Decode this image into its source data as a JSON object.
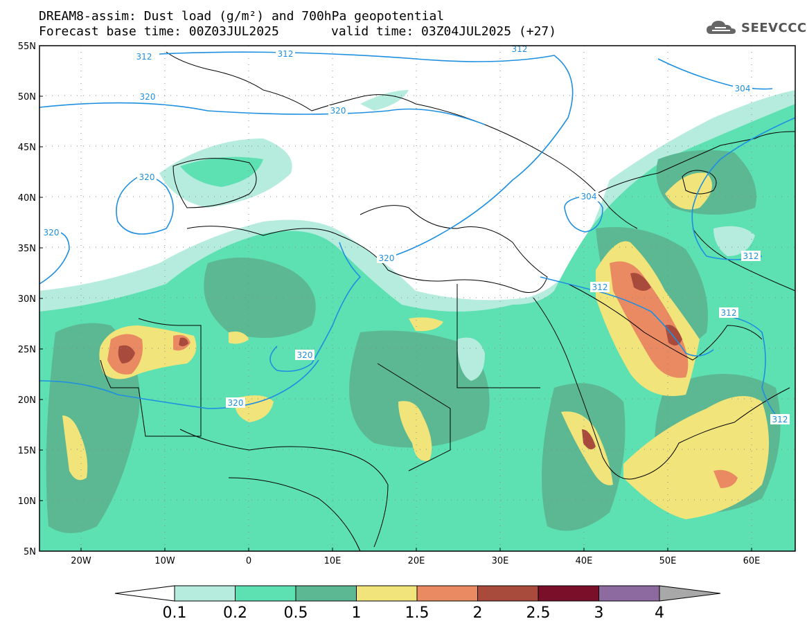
{
  "header": {
    "title_line": "DREAM8-assim: Dust load (g/m²) and 700hPa geopotential",
    "base_time_line": "Forecast base time: 00Z03JUL2025",
    "valid_time_line": "valid time: 03Z04JUL2025 (+27)"
  },
  "logo": {
    "text": "SEEVCCC",
    "icon": "cloud-logo-icon"
  },
  "axes": {
    "lat_labels": [
      "55N",
      "50N",
      "45N",
      "40N",
      "35N",
      "30N",
      "25N",
      "20N",
      "15N",
      "10N",
      "5N"
    ],
    "lon_labels": [
      "20W",
      "10W",
      "0",
      "10E",
      "20E",
      "30E",
      "40E",
      "50E",
      "60E"
    ]
  },
  "contour_labels": [
    "312",
    "312",
    "312",
    "304",
    "320",
    "320",
    "320",
    "320",
    "320",
    "320",
    "304",
    "312",
    "312",
    "312",
    "320",
    "312"
  ],
  "colorbar": {
    "ticks": [
      "0.1",
      "0.2",
      "0.5",
      "1",
      "1.5",
      "2",
      "2.5",
      "3",
      "4"
    ],
    "colors": [
      "#b6ecde",
      "#5de0b2",
      "#5cb893",
      "#f0e47a",
      "#e98a63",
      "#a84a3c",
      "#7a0f2a",
      "#8d6aa0",
      "#a8a8a8"
    ],
    "under_color": "#ffffff"
  }
}
